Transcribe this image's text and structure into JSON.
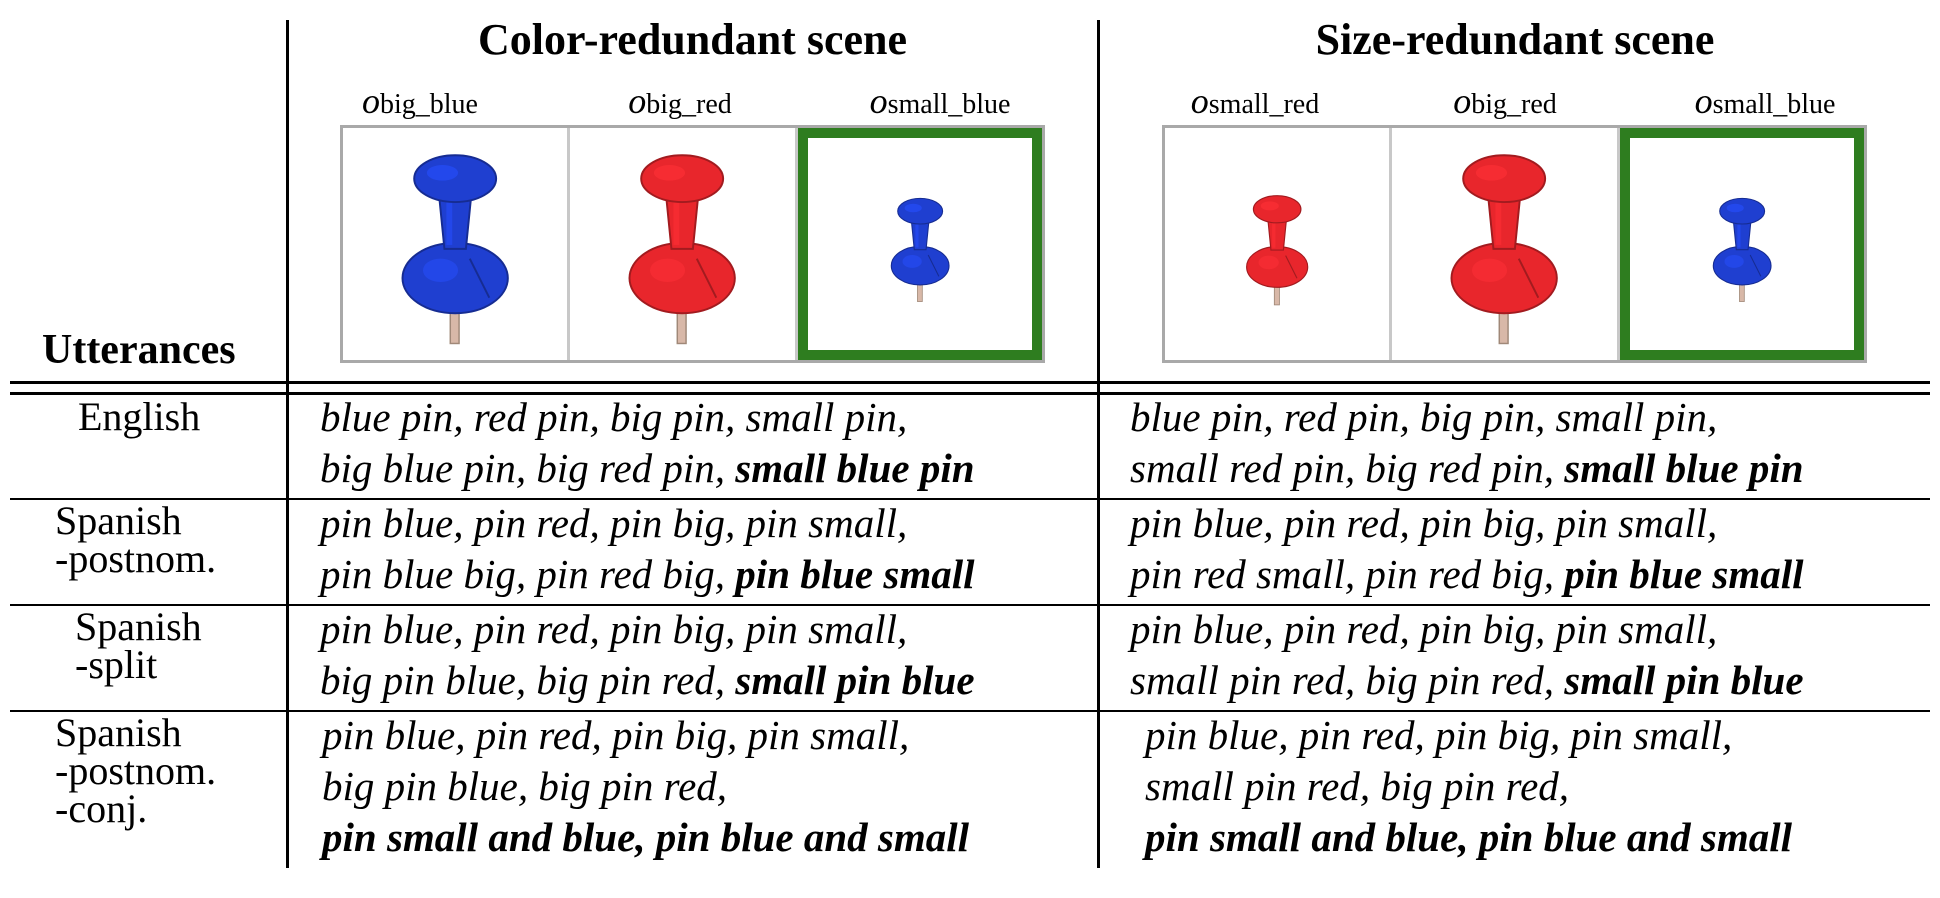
{
  "header": {
    "utterances_label": "Utterances",
    "color_scene_title": "Color-redundant scene",
    "size_scene_title": "Size-redundant scene"
  },
  "color_scene": {
    "objects": [
      {
        "symbol": "o",
        "subscript": "big_blue",
        "pin_color": "blue",
        "size": "big",
        "target": false
      },
      {
        "symbol": "o",
        "subscript": "big_red",
        "pin_color": "red",
        "size": "big",
        "target": false
      },
      {
        "symbol": "o",
        "subscript": "small_blue",
        "pin_color": "blue",
        "size": "small",
        "target": true
      }
    ]
  },
  "size_scene": {
    "objects": [
      {
        "symbol": "o",
        "subscript": "small_red",
        "pin_color": "red",
        "size": "small",
        "target": false
      },
      {
        "symbol": "o",
        "subscript": "big_red",
        "pin_color": "red",
        "size": "big",
        "target": false
      },
      {
        "symbol": "o",
        "subscript": "small_blue",
        "pin_color": "blue",
        "size": "small",
        "target": true
      }
    ]
  },
  "colors": {
    "blue_pin": "#1f3fd0",
    "red_pin": "#e8262c",
    "target_border": "#2e7d1f",
    "scene_border": "#a9a9a9"
  },
  "rows": [
    {
      "language": "English",
      "color_lines": [
        {
          "plain": "blue pin, red pin, big pin, small pin,",
          "bold": ""
        },
        {
          "plain": "big blue pin, big red pin, ",
          "bold": "small blue pin"
        }
      ],
      "size_lines": [
        {
          "plain": "blue pin, red pin, big pin, small pin,",
          "bold": ""
        },
        {
          "plain": "small red pin, big red pin, ",
          "bold": "small blue pin"
        }
      ]
    },
    {
      "language": "Spanish\n-postnom.",
      "color_lines": [
        {
          "plain": "pin blue, pin red, pin big, pin small,",
          "bold": ""
        },
        {
          "plain": "pin blue big, pin red big, ",
          "bold": "pin blue small"
        }
      ],
      "size_lines": [
        {
          "plain": "pin blue, pin red, pin big, pin small,",
          "bold": ""
        },
        {
          "plain": "pin red small, pin red big, ",
          "bold": "pin blue small"
        }
      ]
    },
    {
      "language": "Spanish\n-split",
      "color_lines": [
        {
          "plain": "pin blue, pin red, pin big, pin small,",
          "bold": ""
        },
        {
          "plain": "big pin blue, big pin red, ",
          "bold": "small pin blue"
        }
      ],
      "size_lines": [
        {
          "plain": "pin blue, pin red, pin big, pin small,",
          "bold": ""
        },
        {
          "plain": "small pin red, big pin red, ",
          "bold": "small pin blue"
        }
      ]
    },
    {
      "language": "Spanish\n-postnom.\n-conj.",
      "color_lines": [
        {
          "plain": "pin blue, pin red, pin big, pin small,",
          "bold": ""
        },
        {
          "plain": "big pin blue, big pin red,",
          "bold": ""
        },
        {
          "plain": "",
          "bold": "pin small and blue, pin blue and small"
        }
      ],
      "size_lines": [
        {
          "plain": "pin blue, pin red, pin big, pin small,",
          "bold": ""
        },
        {
          "plain": "small pin red, big pin red,",
          "bold": ""
        },
        {
          "plain": "",
          "bold": "pin small and blue, pin blue and small"
        }
      ]
    }
  ]
}
